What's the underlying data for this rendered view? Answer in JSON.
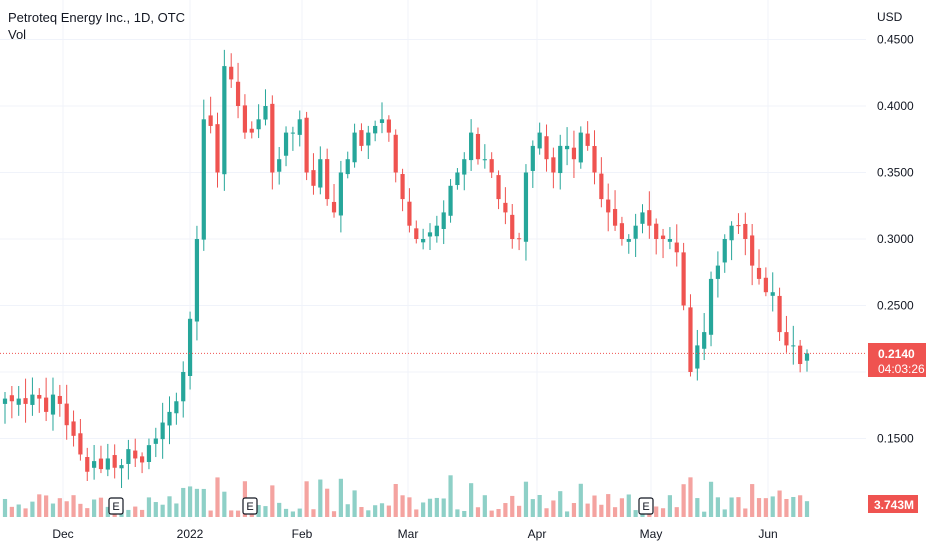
{
  "legend": {
    "title": "Petroteq Energy Inc., 1D, OTC",
    "vol_label": "Vol"
  },
  "price_axis": {
    "currency": "USD",
    "ticks": [
      "0.4500",
      "0.4000",
      "0.3500",
      "0.3000",
      "0.2500",
      "0.1500"
    ],
    "tick_values": [
      0.45,
      0.4,
      0.35,
      0.3,
      0.25,
      0.15
    ]
  },
  "last_price": {
    "value": 0.214,
    "label": "0.2140",
    "countdown": "04:03:26"
  },
  "volume_badge": "3.743M",
  "time_axis": {
    "labels": [
      "Dec",
      "2022",
      "Feb",
      "Mar",
      "Apr",
      "May",
      "Jun"
    ]
  },
  "earnings_marker_label": "E",
  "colors": {
    "up": "#26a69a",
    "down": "#ef5350",
    "vol_up": "#8ed0c7",
    "vol_down": "#f4a3a0",
    "text": "#131722",
    "grid": "#f0f3fa"
  },
  "chart_data": {
    "type": "candlestick",
    "title": "Petroteq Energy Inc., 1D, OTC",
    "ylabel": "USD",
    "ylim": [
      0.12,
      0.47
    ],
    "grid": true,
    "x": [
      "Dec",
      "2022",
      "Feb",
      "Mar",
      "Apr",
      "May",
      "Jun"
    ],
    "close_series": [
      0.18,
      0.178,
      0.18,
      0.176,
      0.183,
      0.18,
      0.17,
      0.183,
      0.176,
      0.16,
      0.152,
      0.138,
      0.125,
      0.133,
      0.127,
      0.135,
      0.128,
      0.13,
      0.142,
      0.135,
      0.132,
      0.145,
      0.15,
      0.162,
      0.17,
      0.178,
      0.2,
      0.24,
      0.3,
      0.39,
      0.385,
      0.35,
      0.43,
      0.42,
      0.4,
      0.38,
      0.38,
      0.39,
      0.4,
      0.35,
      0.36,
      0.38,
      0.38,
      0.39,
      0.35,
      0.34,
      0.36,
      0.33,
      0.32,
      0.35,
      0.36,
      0.38,
      0.37,
      0.38,
      0.385,
      0.39,
      0.38,
      0.35,
      0.33,
      0.31,
      0.3,
      0.3,
      0.305,
      0.31,
      0.32,
      0.34,
      0.35,
      0.36,
      0.38,
      0.36,
      0.36,
      0.35,
      0.33,
      0.32,
      0.3,
      0.3,
      0.35,
      0.37,
      0.38,
      0.36,
      0.35,
      0.37,
      0.37,
      0.36,
      0.38,
      0.37,
      0.35,
      0.33,
      0.32,
      0.31,
      0.3,
      0.3,
      0.31,
      0.32,
      0.31,
      0.3,
      0.3,
      0.3,
      0.29,
      0.25,
      0.2,
      0.22,
      0.23,
      0.27,
      0.28,
      0.3,
      0.31,
      0.31,
      0.3,
      0.28,
      0.27,
      0.26,
      0.26,
      0.23,
      0.22,
      0.22,
      0.206,
      0.214
    ],
    "volume_unit": "M",
    "volume_last": 3.743,
    "earnings_markers": 3
  }
}
